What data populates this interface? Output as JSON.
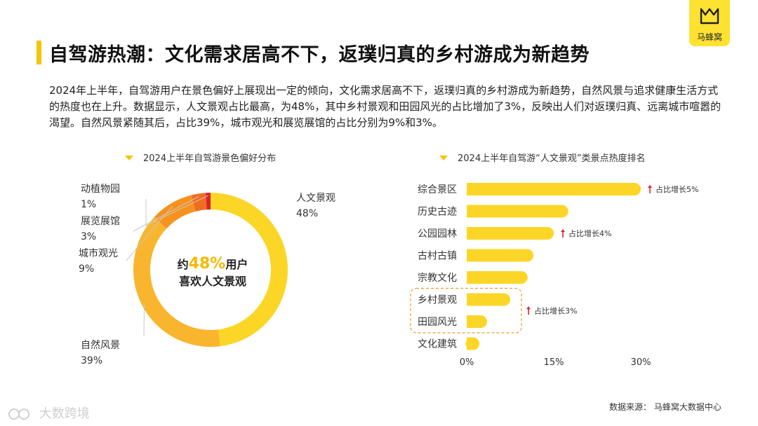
{
  "title": "自驾游热潮：文化需求居高不下，返璞归真的乡村游成为新趋势",
  "brand": {
    "name": "马蜂窝",
    "color": "#fde232"
  },
  "paragraph": "2024年上半年，自驾游用户在景色偏好上展现出一定的倾向，文化需求居高不下，返璞归真的乡村游成为新趋势，自然风景与追求健康生活方式的热度也在上升。数据显示，人文景观占比最高，为48%，其中乡村景观和田园风光的占比增加了3%，反映出人们对返璞归真、远离城市喧嚣的渴望。自然风景紧随其后，占比39%，城市观光和展览展馆的占比分别为9%和3%。",
  "center_text": {
    "prefix": "约",
    "big": "48%",
    "suffix": "用户",
    "line2": "喜欢人文景观"
  },
  "source": "数据来源：  马蜂窝大数据中心",
  "watermark": "大数跨境",
  "chart_data": [
    {
      "type": "pie",
      "title": "2024上半年自驾游景色偏好分布",
      "labels": [
        "人文景观",
        "自然风景",
        "城市观光",
        "展览展馆",
        "动植物园"
      ],
      "values": [
        48,
        39,
        9,
        3,
        1
      ],
      "value_labels": [
        "48%",
        "39%",
        "9%",
        "3%",
        "1%"
      ],
      "colors": [
        "#fbd626",
        "#f9b52d",
        "#f7921c",
        "#f26c1f",
        "#d8232f"
      ]
    },
    {
      "type": "bar",
      "orientation": "horizontal",
      "title": "2024上半年自驾游“人文景观”类景点热度排名",
      "categories": [
        "综合景区",
        "历史古迹",
        "公园园林",
        "古村古镇",
        "宗教文化",
        "乡村景观",
        "田园风光",
        "文化建筑"
      ],
      "values": [
        30,
        17.5,
        15,
        11.5,
        10.5,
        7.5,
        3.5,
        2
      ],
      "xlim": [
        0,
        30
      ],
      "xticks": [
        "0%",
        "15%",
        "30%"
      ],
      "color": "#fbd626",
      "annotations": [
        {
          "category": "综合景区",
          "text": "占比增长5%"
        },
        {
          "category": "公园园林",
          "text": "占比增长4%"
        },
        {
          "category": "乡村景观",
          "text": "占比增长3%",
          "group": [
            "乡村景观",
            "田园风光"
          ]
        }
      ]
    }
  ]
}
